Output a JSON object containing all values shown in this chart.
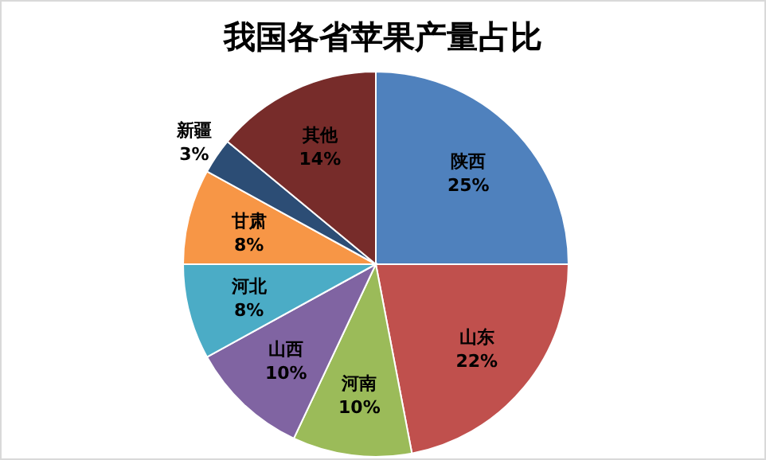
{
  "chart_data": {
    "type": "pie",
    "title": "我国各省苹果产量占比",
    "categories": [
      "陕西",
      "山东",
      "河南",
      "山西",
      "河北",
      "甘肃",
      "新疆",
      "其他"
    ],
    "values": [
      25,
      22,
      10,
      10,
      8,
      8,
      3,
      14
    ],
    "colors": [
      "#4f81bd",
      "#c0504d",
      "#9bbb59",
      "#8064a2",
      "#4bacc6",
      "#f79646",
      "#2c4d75",
      "#772c2a"
    ],
    "value_labels": [
      "25%",
      "22%",
      "10%",
      "10%",
      "8%",
      "8%",
      "3%",
      "14%"
    ]
  }
}
